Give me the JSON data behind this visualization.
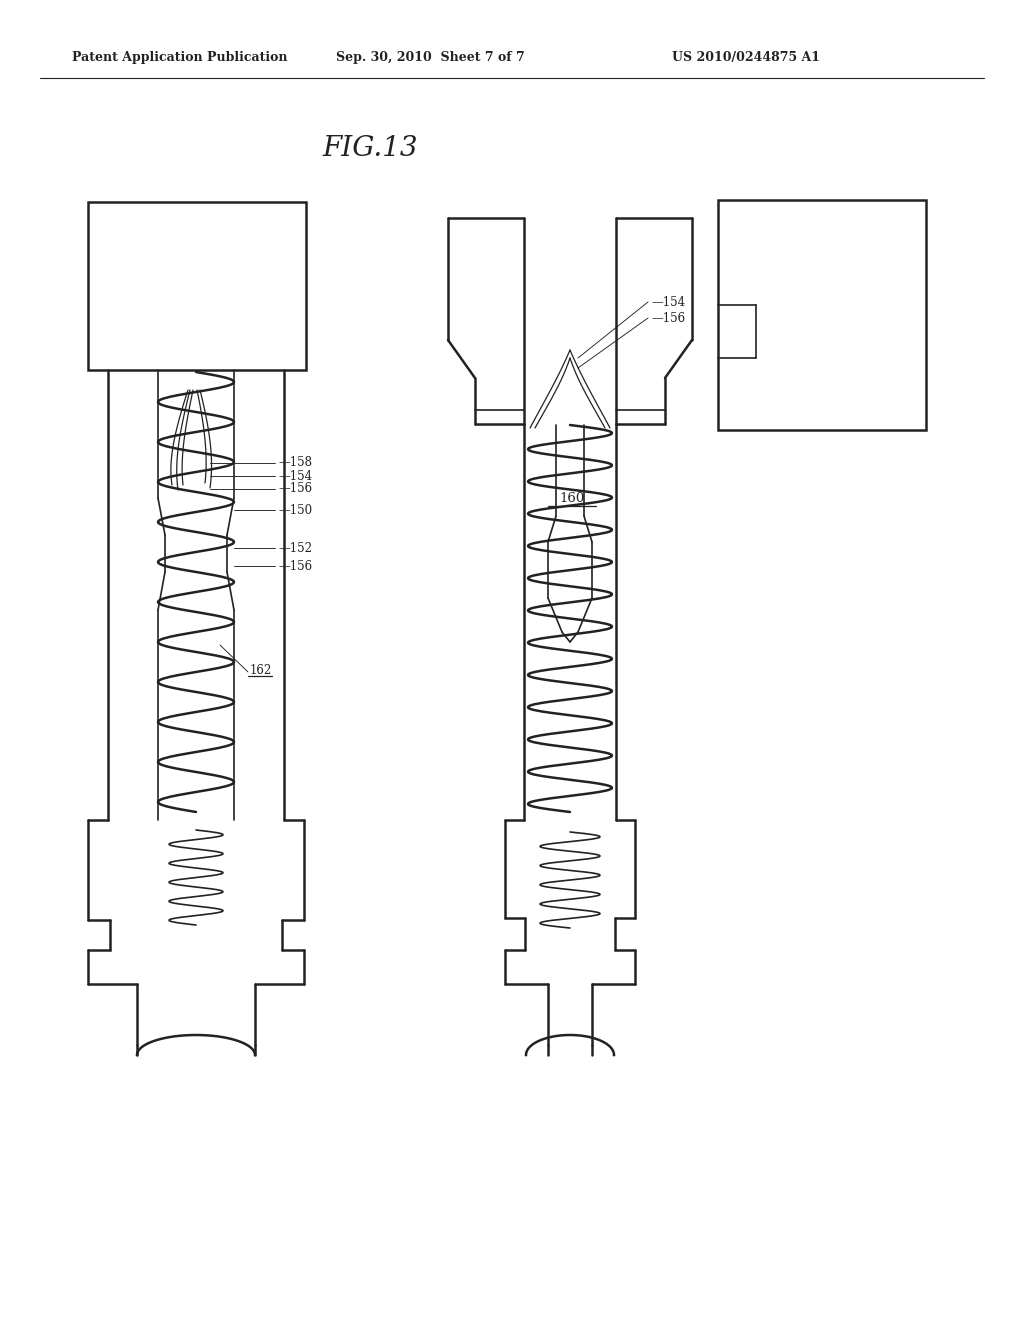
{
  "header_left": "Patent Application Publication",
  "header_center": "Sep. 30, 2010  Sheet 7 of 7",
  "header_right": "US 2010/0244875 A1",
  "figure_label": "FIG.13",
  "bg_color": "#ffffff",
  "line_color": "#222222",
  "lw_thick": 1.8,
  "lw_med": 1.2,
  "lw_thin": 0.75,
  "lw_wire": 0.85,
  "lw_sep": 0.8,
  "header_fontsize": 9,
  "fig_label_fontsize": 20,
  "ref_fontsize": 8.5
}
